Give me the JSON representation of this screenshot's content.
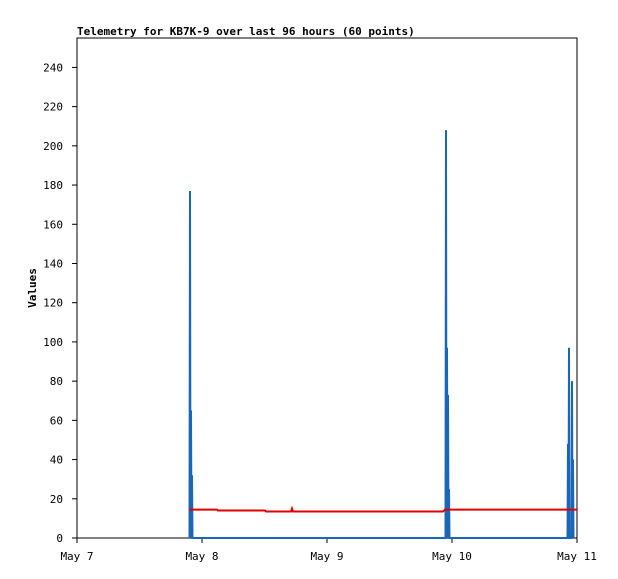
{
  "chart_data": {
    "type": "line",
    "title": "Telemetry for KB7K-9 over last 96 hours (60 points)",
    "y_label": "Values",
    "xlim": [
      0,
      4
    ],
    "xticks": [
      {
        "value": 0,
        "label": "May 7"
      },
      {
        "value": 1,
        "label": "May 8"
      },
      {
        "value": 2,
        "label": "May 9"
      },
      {
        "value": 3,
        "label": "May 10"
      },
      {
        "value": 4,
        "label": "May 11"
      }
    ],
    "ylim": [
      0,
      255
    ],
    "yticks": [
      0,
      20,
      40,
      60,
      80,
      100,
      120,
      140,
      160,
      180,
      200,
      220,
      240
    ],
    "series": [
      {
        "color": "#1a66b8",
        "x": [
          0.9,
          0.904,
          0.908,
          0.912,
          0.916,
          0.92,
          0.924,
          2.948,
          2.952,
          2.956,
          2.96,
          2.964,
          2.968,
          2.972,
          2.976,
          2.98,
          3.924,
          3.928,
          3.932,
          3.936,
          3.94,
          3.956,
          3.96,
          3.964,
          3.968,
          3.972
        ],
        "values": [
          0,
          177,
          0,
          65,
          0,
          32,
          0,
          0,
          208,
          0,
          97,
          0,
          73,
          0,
          25,
          0,
          0,
          48,
          0,
          97,
          0,
          0,
          80,
          0,
          40,
          0
        ]
      },
      {
        "color": "#e00000",
        "x": [
          0.9,
          1.12,
          1.128,
          1.504,
          1.512,
          1.712,
          1.72,
          1.728,
          2.928,
          2.944,
          4.0
        ],
        "values": [
          14.5,
          14.5,
          14,
          14,
          13.5,
          13.5,
          15,
          13.5,
          13.5,
          14.5,
          14.5
        ]
      }
    ]
  }
}
